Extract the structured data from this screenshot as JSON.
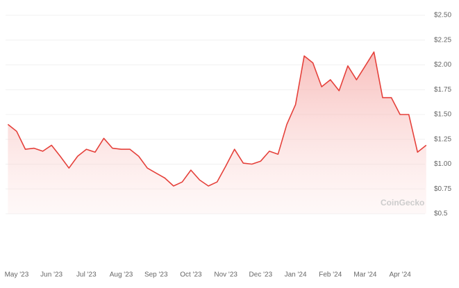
{
  "chart_data": {
    "type": "area",
    "watermark": "CoinGecko",
    "categories": [
      null,
      "May '23",
      null,
      null,
      null,
      "Jun '23",
      null,
      null,
      null,
      "Jul '23",
      null,
      null,
      null,
      "Aug '23",
      null,
      null,
      null,
      "Sep '23",
      null,
      null,
      null,
      "Oct '23",
      null,
      null,
      null,
      "Nov '23",
      null,
      null,
      null,
      "Dec '23",
      null,
      null,
      null,
      "Jan '24",
      null,
      null,
      null,
      "Feb '24",
      null,
      null,
      null,
      "Mar '24",
      null,
      null,
      null,
      "Apr '24",
      null,
      null,
      null
    ],
    "values": [
      1.4,
      1.33,
      1.15,
      1.16,
      1.13,
      1.19,
      1.08,
      0.96,
      1.08,
      1.15,
      1.12,
      1.26,
      1.16,
      1.15,
      1.15,
      1.08,
      0.96,
      0.91,
      0.86,
      0.78,
      0.82,
      0.94,
      0.84,
      0.78,
      0.82,
      0.98,
      1.15,
      1.01,
      1.0,
      1.03,
      1.13,
      1.1,
      1.4,
      1.6,
      2.09,
      2.02,
      1.78,
      1.85,
      1.74,
      1.99,
      1.85,
      1.99,
      2.13,
      1.67,
      1.67,
      1.5,
      1.5,
      1.12,
      1.19
    ],
    "color": "#e5403a",
    "ylim": [
      0.5,
      2.5
    ],
    "yticks": [
      {
        "value": 0.5,
        "label": "$0.5"
      },
      {
        "value": 0.75,
        "label": "$0.75"
      },
      {
        "value": 1,
        "label": "$1.00"
      },
      {
        "value": 1.25,
        "label": "$1.25"
      },
      {
        "value": 1.5,
        "label": "$1.50"
      },
      {
        "value": 1.75,
        "label": "$1.75"
      },
      {
        "value": 2,
        "label": "$2.00"
      },
      {
        "value": 2.25,
        "label": "$2.25"
      },
      {
        "value": 2.5,
        "label": "$2.50"
      }
    ],
    "grid": true
  }
}
